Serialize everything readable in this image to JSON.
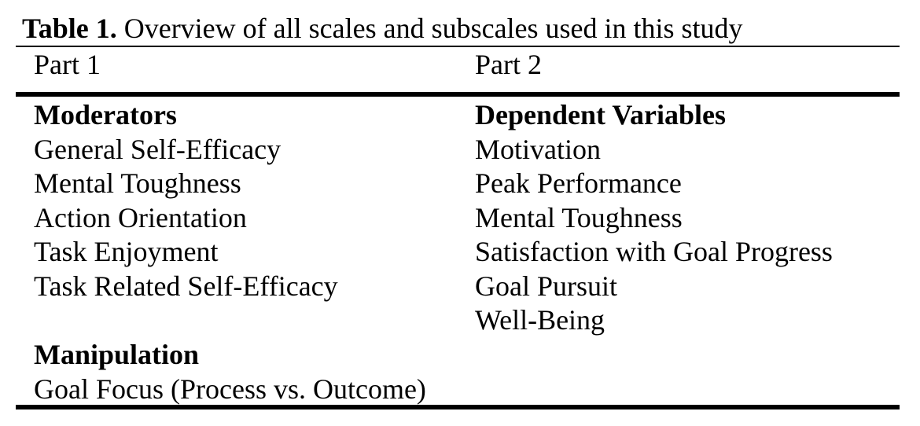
{
  "caption": {
    "label": "Table 1.",
    "text": " Overview of all scales and subscales used in this study"
  },
  "columns": {
    "left_header": "Part 1",
    "right_header": "Part 2"
  },
  "left": {
    "moderators": {
      "title": "Moderators",
      "items": [
        "General Self-Efficacy",
        "Mental Toughness",
        "Action Orientation",
        "Task Enjoyment",
        "Task Related Self-Efficacy"
      ]
    },
    "manipulation": {
      "title": "Manipulation",
      "items": [
        "Goal Focus (Process vs. Outcome)"
      ]
    }
  },
  "right": {
    "dependent_variables": {
      "title": "Dependent Variables",
      "items": [
        "Motivation",
        "Peak Performance",
        "Mental Toughness",
        "Satisfaction with Goal Progress",
        "Goal Pursuit",
        "Well-Being"
      ]
    }
  }
}
